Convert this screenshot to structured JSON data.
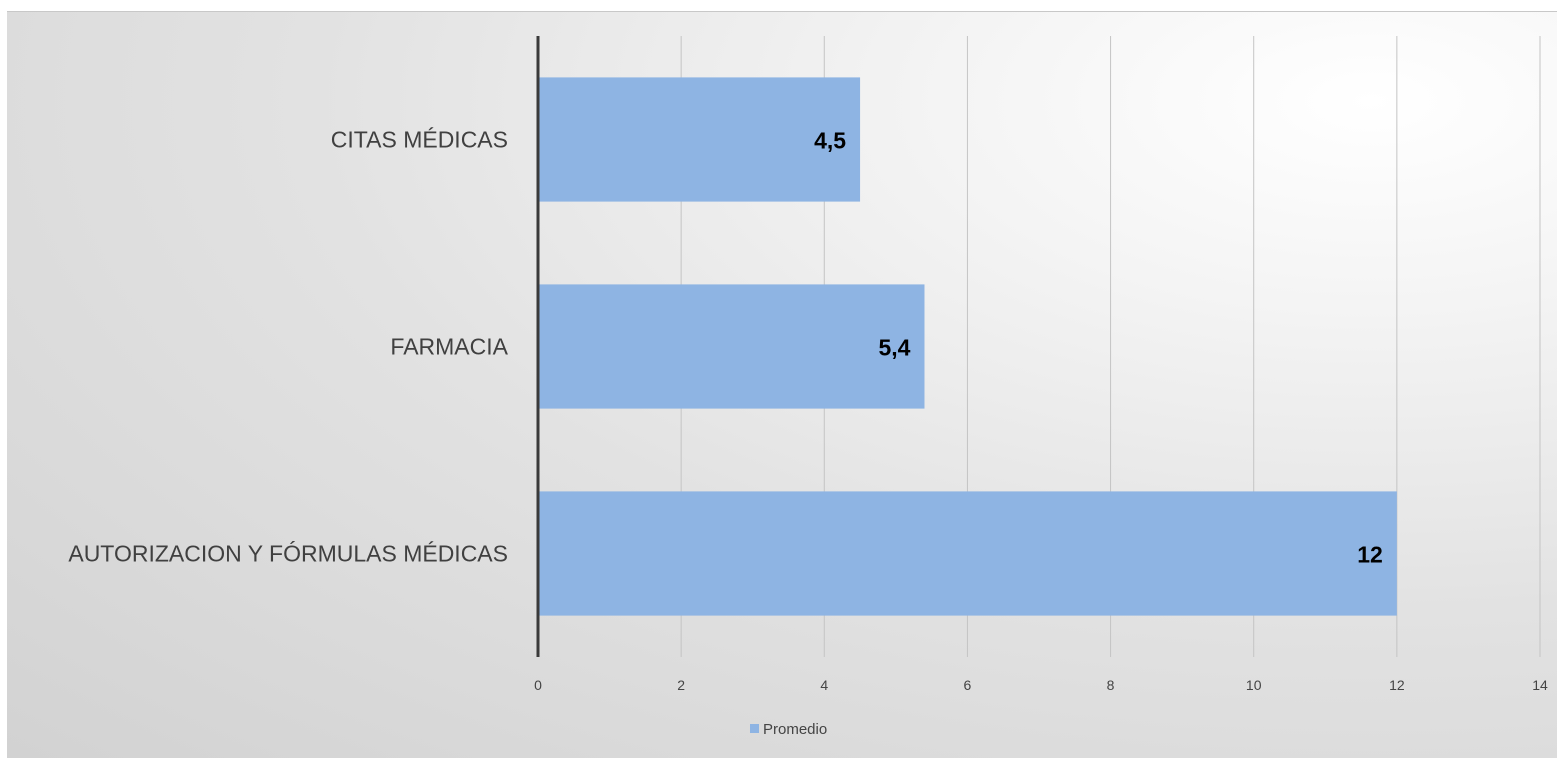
{
  "chart_data": {
    "type": "bar",
    "orientation": "horizontal",
    "categories": [
      "CITAS MÉDICAS",
      "FARMACIA",
      "AUTORIZACION Y FÓRMULAS MÉDICAS"
    ],
    "series": [
      {
        "name": "Promedio",
        "values": [
          4.5,
          5.4,
          12
        ],
        "labels": [
          "4,5",
          "5,4",
          "12"
        ],
        "color": "#8EB4E3"
      }
    ],
    "xlim": [
      0,
      14
    ],
    "xticks": [
      0,
      2,
      4,
      6,
      8,
      10,
      12,
      14
    ],
    "grid": true,
    "legend_position": "bottom",
    "title": "",
    "xlabel": "",
    "ylabel": ""
  }
}
